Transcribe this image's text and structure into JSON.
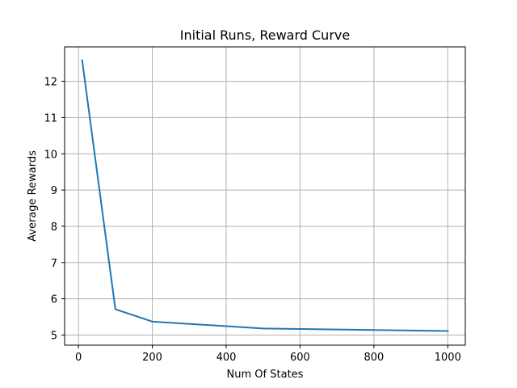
{
  "chart_data": {
    "type": "line",
    "title": "Initial Runs, Reward Curve",
    "xlabel": "Num Of States",
    "ylabel": "Average Rewards",
    "xlim": [
      -37.45,
      1047.45
    ],
    "ylim": [
      4.72,
      12.95
    ],
    "xticks": [
      0,
      200,
      400,
      600,
      800,
      1000
    ],
    "yticks": [
      5,
      6,
      7,
      8,
      9,
      10,
      11,
      12
    ],
    "grid": true,
    "series": [
      {
        "x": [
          10,
          100,
          200,
          500,
          1000
        ],
        "y": [
          12.58,
          5.71,
          5.37,
          5.18,
          5.11
        ],
        "color": "#1f77b4"
      }
    ]
  }
}
